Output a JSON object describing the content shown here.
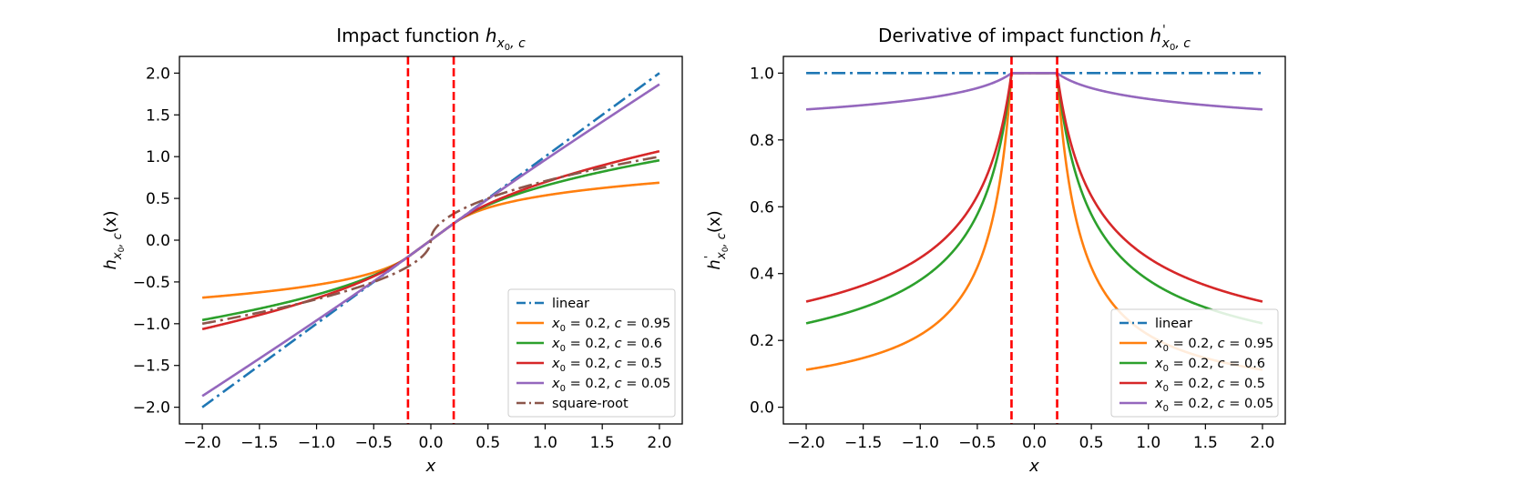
{
  "chart_data": [
    {
      "type": "line",
      "title": "Impact function",
      "title_math": {
        "base": "h",
        "sub": "x",
        "subsub": "0",
        "subtail": ", c"
      },
      "xlabel": "x",
      "ylabel_math": {
        "base": "h",
        "sub": "x",
        "subsub": "0",
        "subtail": ", c",
        "arg": "(x)"
      },
      "xlim": [
        -2.2,
        2.2
      ],
      "ylim": [
        -2.2,
        2.2
      ],
      "xticks": [
        -2.0,
        -1.5,
        -1.0,
        -0.5,
        0.0,
        0.5,
        1.0,
        1.5,
        2.0
      ],
      "yticks": [
        -2.0,
        -1.5,
        -1.0,
        -0.5,
        0.0,
        0.5,
        1.0,
        1.5,
        2.0
      ],
      "xtick_labels": [
        "−2.0",
        "−1.5",
        "−1.0",
        "−0.5",
        "0.0",
        "0.5",
        "1.0",
        "1.5",
        "2.0"
      ],
      "ytick_labels": [
        "−2.0",
        "−1.5",
        "−1.0",
        "−0.5",
        "0.0",
        "0.5",
        "1.0",
        "1.5",
        "2.0"
      ],
      "vlines": [
        -0.2,
        0.2
      ],
      "vline_color": "#ff0000",
      "legend_position": "lower right",
      "series": [
        {
          "legend": {
            "pre": "linear"
          },
          "color": "#1f77b4",
          "dash": "dashdot",
          "kind": "linear"
        },
        {
          "legend": {
            "pre": "x",
            "sub": "0",
            "mid": " = 0.2, ",
            "var": "c",
            "post": " = 0.95"
          },
          "color": "#ff7f0e",
          "dash": "solid",
          "kind": "impact",
          "x0": 0.2,
          "c": 0.95
        },
        {
          "legend": {
            "pre": "x",
            "sub": "0",
            "mid": " = 0.2, ",
            "var": "c",
            "post": " = 0.6"
          },
          "color": "#2ca02c",
          "dash": "solid",
          "kind": "impact",
          "x0": 0.2,
          "c": 0.6
        },
        {
          "legend": {
            "pre": "x",
            "sub": "0",
            "mid": " = 0.2, ",
            "var": "c",
            "post": " = 0.5"
          },
          "color": "#d62728",
          "dash": "solid",
          "kind": "impact",
          "x0": 0.2,
          "c": 0.5
        },
        {
          "legend": {
            "pre": "x",
            "sub": "0",
            "mid": " = 0.2, ",
            "var": "c",
            "post": " = 0.05"
          },
          "color": "#9467bd",
          "dash": "solid",
          "kind": "impact",
          "x0": 0.2,
          "c": 0.05
        },
        {
          "legend": {
            "pre": "square-root"
          },
          "color": "#8c564b",
          "dash": "dashdot",
          "kind": "sqrt"
        }
      ]
    },
    {
      "type": "line",
      "title": "Derivative of impact function",
      "title_math": {
        "base": "h",
        "prime": "'",
        "sub": "x",
        "subsub": "0",
        "subtail": ", c"
      },
      "xlabel": "x",
      "ylabel_math": {
        "base": "h",
        "prime": "'",
        "sub": "x",
        "subsub": "0",
        "subtail": ", c",
        "arg": "(x)"
      },
      "xlim": [
        -2.2,
        2.2
      ],
      "ylim": [
        -0.05,
        1.05
      ],
      "xticks": [
        -2.0,
        -1.5,
        -1.0,
        -0.5,
        0.0,
        0.5,
        1.0,
        1.5,
        2.0
      ],
      "yticks": [
        0.0,
        0.2,
        0.4,
        0.6,
        0.8,
        1.0
      ],
      "xtick_labels": [
        "−2.0",
        "−1.5",
        "−1.0",
        "−0.5",
        "0.0",
        "0.5",
        "1.0",
        "1.5",
        "2.0"
      ],
      "ytick_labels": [
        "0.0",
        "0.2",
        "0.4",
        "0.6",
        "0.8",
        "1.0"
      ],
      "vlines": [
        -0.2,
        0.2
      ],
      "vline_color": "#ff0000",
      "legend_position": "lower right",
      "series": [
        {
          "legend": {
            "pre": "linear"
          },
          "color": "#1f77b4",
          "dash": "dashdot",
          "kind": "dlinear"
        },
        {
          "legend": {
            "pre": "x",
            "sub": "0",
            "mid": " = 0.2, ",
            "var": "c",
            "post": " = 0.95"
          },
          "color": "#ff7f0e",
          "dash": "solid",
          "kind": "dimpact",
          "x0": 0.2,
          "c": 0.95
        },
        {
          "legend": {
            "pre": "x",
            "sub": "0",
            "mid": " = 0.2, ",
            "var": "c",
            "post": " = 0.6"
          },
          "color": "#2ca02c",
          "dash": "solid",
          "kind": "dimpact",
          "x0": 0.2,
          "c": 0.6
        },
        {
          "legend": {
            "pre": "x",
            "sub": "0",
            "mid": " = 0.2, ",
            "var": "c",
            "post": " = 0.5"
          },
          "color": "#d62728",
          "dash": "solid",
          "kind": "dimpact",
          "x0": 0.2,
          "c": 0.5
        },
        {
          "legend": {
            "pre": "x",
            "sub": "0",
            "mid": " = 0.2, ",
            "var": "c",
            "post": " = 0.05"
          },
          "color": "#9467bd",
          "dash": "solid",
          "kind": "dimpact",
          "x0": 0.2,
          "c": 0.05
        }
      ]
    }
  ]
}
